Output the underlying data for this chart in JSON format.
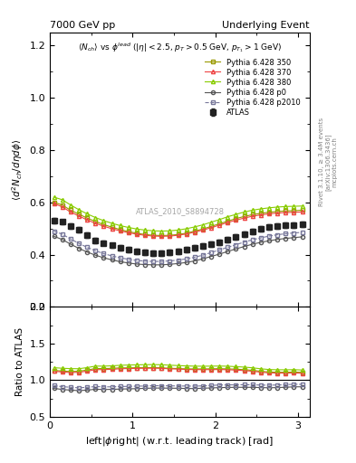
{
  "title_left": "7000 GeV pp",
  "title_right": "Underlying Event",
  "annotation": "ATLAS_2010_S8894728",
  "rivet_label": "Rivet 3.1.10, ≥ 3.4M events",
  "arxiv_label": "[arXiv:1306.3436]",
  "mcplots_label": "mcplots.cern.ch",
  "ylabel_main": "$\\langle d^2 N_{ch}/d\\eta d\\phi \\rangle$",
  "ylabel_ratio": "Ratio to ATLAS",
  "xlabel": "left|$\\phi$right| (w.r.t. leading track) [rad]",
  "plot_title": "$\\langle N_{ch} \\rangle$ vs $\\phi^{lead}$ ($|\\eta| < 2.5$, $p_T > 0.5$ GeV, $p_{T_1} > 1$ GeV)",
  "ylim_main": [
    0.2,
    1.25
  ],
  "ylim_ratio": [
    0.5,
    2.0
  ],
  "xlim": [
    0,
    3.14159
  ],
  "yticks_main": [
    0.2,
    0.4,
    0.6,
    0.8,
    1.0,
    1.2
  ],
  "yticks_ratio": [
    0.5,
    1.0,
    1.5,
    2.0
  ],
  "series": {
    "ATLAS": {
      "color": "#222222",
      "marker": "s",
      "markersize": 4,
      "linestyle": "none",
      "label": "ATLAS",
      "zorder": 5,
      "x": [
        0.05,
        0.15,
        0.25,
        0.35,
        0.45,
        0.55,
        0.65,
        0.75,
        0.85,
        0.95,
        1.05,
        1.15,
        1.25,
        1.35,
        1.45,
        1.55,
        1.65,
        1.75,
        1.85,
        1.95,
        2.05,
        2.15,
        2.25,
        2.35,
        2.45,
        2.55,
        2.65,
        2.75,
        2.85,
        2.95,
        3.05
      ],
      "y": [
        0.53,
        0.525,
        0.51,
        0.495,
        0.475,
        0.455,
        0.445,
        0.435,
        0.425,
        0.418,
        0.412,
        0.408,
        0.405,
        0.405,
        0.408,
        0.412,
        0.418,
        0.425,
        0.432,
        0.44,
        0.448,
        0.458,
        0.468,
        0.478,
        0.488,
        0.498,
        0.506,
        0.51,
        0.512,
        0.512,
        0.515
      ],
      "yerr": [
        0.01,
        0.01,
        0.01,
        0.01,
        0.01,
        0.01,
        0.01,
        0.01,
        0.01,
        0.01,
        0.01,
        0.01,
        0.01,
        0.01,
        0.01,
        0.01,
        0.01,
        0.01,
        0.01,
        0.01,
        0.01,
        0.01,
        0.01,
        0.01,
        0.01,
        0.01,
        0.01,
        0.01,
        0.01,
        0.01,
        0.01
      ]
    },
    "Pythia350": {
      "color": "#999900",
      "marker": "s",
      "markersize": 3,
      "linestyle": "-",
      "label": "Pythia 6.428 350",
      "zorder": 3,
      "x": [
        0.05,
        0.15,
        0.25,
        0.35,
        0.45,
        0.55,
        0.65,
        0.75,
        0.85,
        0.95,
        1.05,
        1.15,
        1.25,
        1.35,
        1.45,
        1.55,
        1.65,
        1.75,
        1.85,
        1.95,
        2.05,
        2.15,
        2.25,
        2.35,
        2.45,
        2.55,
        2.65,
        2.75,
        2.85,
        2.95,
        3.05
      ],
      "y": [
        0.6,
        0.59,
        0.57,
        0.555,
        0.54,
        0.527,
        0.515,
        0.505,
        0.496,
        0.488,
        0.482,
        0.477,
        0.474,
        0.473,
        0.474,
        0.477,
        0.482,
        0.49,
        0.498,
        0.508,
        0.518,
        0.528,
        0.538,
        0.546,
        0.553,
        0.558,
        0.562,
        0.565,
        0.567,
        0.568,
        0.57
      ]
    },
    "Pythia370": {
      "color": "#ee4444",
      "marker": "^",
      "markersize": 3,
      "linestyle": "-",
      "label": "Pythia 6.428 370",
      "zorder": 3,
      "x": [
        0.05,
        0.15,
        0.25,
        0.35,
        0.45,
        0.55,
        0.65,
        0.75,
        0.85,
        0.95,
        1.05,
        1.15,
        1.25,
        1.35,
        1.45,
        1.55,
        1.65,
        1.75,
        1.85,
        1.95,
        2.05,
        2.15,
        2.25,
        2.35,
        2.45,
        2.55,
        2.65,
        2.75,
        2.85,
        2.95,
        3.05
      ],
      "y": [
        0.595,
        0.583,
        0.563,
        0.548,
        0.533,
        0.52,
        0.509,
        0.499,
        0.491,
        0.484,
        0.478,
        0.474,
        0.471,
        0.47,
        0.471,
        0.474,
        0.479,
        0.486,
        0.494,
        0.503,
        0.513,
        0.523,
        0.532,
        0.54,
        0.547,
        0.552,
        0.556,
        0.559,
        0.561,
        0.562,
        0.563
      ]
    },
    "Pythia380": {
      "color": "#88cc00",
      "marker": "^",
      "markersize": 3,
      "linestyle": "-",
      "label": "Pythia 6.428 380",
      "zorder": 3,
      "x": [
        0.05,
        0.15,
        0.25,
        0.35,
        0.45,
        0.55,
        0.65,
        0.75,
        0.85,
        0.95,
        1.05,
        1.15,
        1.25,
        1.35,
        1.45,
        1.55,
        1.65,
        1.75,
        1.85,
        1.95,
        2.05,
        2.15,
        2.25,
        2.35,
        2.45,
        2.55,
        2.65,
        2.75,
        2.85,
        2.95,
        3.05
      ],
      "y": [
        0.62,
        0.61,
        0.59,
        0.572,
        0.556,
        0.542,
        0.53,
        0.52,
        0.511,
        0.504,
        0.498,
        0.494,
        0.491,
        0.49,
        0.491,
        0.494,
        0.499,
        0.506,
        0.514,
        0.524,
        0.534,
        0.545,
        0.554,
        0.563,
        0.57,
        0.575,
        0.579,
        0.582,
        0.584,
        0.585,
        0.586
      ]
    },
    "Pythiap0": {
      "color": "#555555",
      "marker": "o",
      "markersize": 3,
      "linestyle": "-",
      "label": "Pythia 6.428 p0",
      "zorder": 2,
      "x": [
        0.05,
        0.15,
        0.25,
        0.35,
        0.45,
        0.55,
        0.65,
        0.75,
        0.85,
        0.95,
        1.05,
        1.15,
        1.25,
        1.35,
        1.45,
        1.55,
        1.65,
        1.75,
        1.85,
        1.95,
        2.05,
        2.15,
        2.25,
        2.35,
        2.45,
        2.55,
        2.65,
        2.75,
        2.85,
        2.95,
        3.05
      ],
      "y": [
        0.47,
        0.458,
        0.44,
        0.424,
        0.41,
        0.398,
        0.388,
        0.38,
        0.373,
        0.368,
        0.364,
        0.362,
        0.361,
        0.361,
        0.363,
        0.366,
        0.37,
        0.376,
        0.384,
        0.393,
        0.402,
        0.412,
        0.422,
        0.431,
        0.44,
        0.447,
        0.453,
        0.458,
        0.462,
        0.465,
        0.468
      ]
    },
    "Pythiap2010": {
      "color": "#777799",
      "marker": "s",
      "markersize": 3,
      "linestyle": "--",
      "label": "Pythia 6.428 p2010",
      "zorder": 2,
      "x": [
        0.05,
        0.15,
        0.25,
        0.35,
        0.45,
        0.55,
        0.65,
        0.75,
        0.85,
        0.95,
        1.05,
        1.15,
        1.25,
        1.35,
        1.45,
        1.55,
        1.65,
        1.75,
        1.85,
        1.95,
        2.05,
        2.15,
        2.25,
        2.35,
        2.45,
        2.55,
        2.65,
        2.75,
        2.85,
        2.95,
        3.05
      ],
      "y": [
        0.49,
        0.478,
        0.46,
        0.443,
        0.428,
        0.415,
        0.404,
        0.395,
        0.388,
        0.382,
        0.378,
        0.375,
        0.374,
        0.374,
        0.376,
        0.379,
        0.384,
        0.39,
        0.398,
        0.408,
        0.418,
        0.428,
        0.438,
        0.448,
        0.457,
        0.464,
        0.471,
        0.476,
        0.48,
        0.483,
        0.485
      ]
    }
  }
}
